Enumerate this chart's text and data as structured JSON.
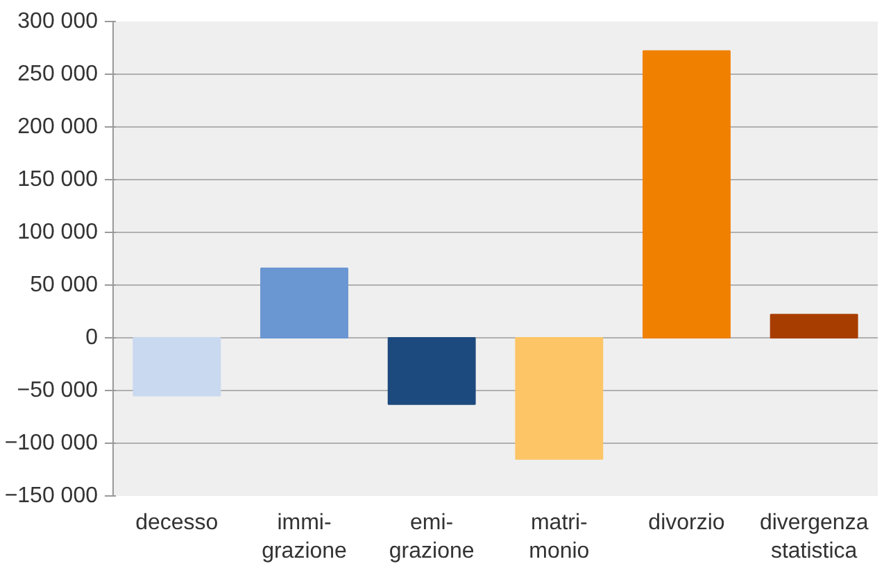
{
  "chart_data": {
    "type": "bar",
    "categories": [
      "decesso",
      "immi-\ngrazione",
      "emi-\ngrazione",
      "matri-\nmonio",
      "divorzio",
      "divergenza\nstatistica"
    ],
    "values": [
      -55000,
      66000,
      -63000,
      -115000,
      272000,
      22000
    ],
    "colors": [
      "#c9d9f0",
      "#6a96d2",
      "#1d4a7e",
      "#fdc566",
      "#f08000",
      "#a83d00"
    ],
    "ylim": [
      -150000,
      300000
    ],
    "yticks": [
      {
        "value": -150000,
        "label": "−150 000"
      },
      {
        "value": -100000,
        "label": "−100 000"
      },
      {
        "value": -50000,
        "label": "−50 000"
      },
      {
        "value": 0,
        "label": "0"
      },
      {
        "value": 50000,
        "label": "50 000"
      },
      {
        "value": 100000,
        "label": "100 000"
      },
      {
        "value": 150000,
        "label": "150 000"
      },
      {
        "value": 200000,
        "label": "200 000"
      },
      {
        "value": 250000,
        "label": "250 000"
      },
      {
        "value": 300000,
        "label": "300 000"
      }
    ],
    "grid": "y"
  }
}
